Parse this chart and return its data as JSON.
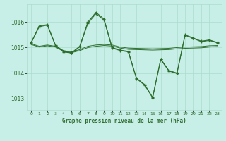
{
  "background_color": "#c8eee8",
  "grid_color": "#aaddcc",
  "line_color": "#2d6e2d",
  "title": "Graphe pression niveau de la mer (hPa)",
  "xlim": [
    -0.5,
    23.5
  ],
  "ylim": [
    1012.55,
    1016.7
  ],
  "yticks": [
    1013,
    1014,
    1015,
    1016
  ],
  "xticks": [
    0,
    1,
    2,
    3,
    4,
    5,
    6,
    7,
    8,
    9,
    10,
    11,
    12,
    13,
    14,
    15,
    16,
    17,
    18,
    19,
    20,
    21,
    22,
    23
  ],
  "s1": [
    1015.2,
    1015.85,
    1015.9,
    1015.1,
    1014.85,
    1014.8,
    1015.05,
    1016.0,
    1016.38,
    1016.12,
    1015.0,
    1014.9,
    1014.85,
    1013.8,
    1013.55,
    1013.05,
    1014.55,
    1014.1,
    1014.0,
    1015.5,
    1015.38,
    1015.25,
    1015.3,
    1015.2
  ],
  "s2": [
    1015.18,
    1015.82,
    1015.88,
    1015.08,
    1014.83,
    1014.78,
    1015.03,
    1015.95,
    1016.33,
    1016.08,
    1014.98,
    1014.88,
    1014.83,
    1013.78,
    1013.53,
    1013.03,
    1014.53,
    1014.08,
    1013.98,
    1015.48,
    1015.36,
    1015.23,
    1015.28,
    1015.18
  ],
  "s3": [
    1015.15,
    1015.05,
    1015.1,
    1015.05,
    1014.88,
    1014.83,
    1014.92,
    1015.05,
    1015.1,
    1015.12,
    1015.1,
    1015.02,
    1014.98,
    1014.97,
    1014.96,
    1014.95,
    1014.96,
    1014.97,
    1015.0,
    1015.02,
    1015.03,
    1015.04,
    1015.07,
    1015.08
  ],
  "s4": [
    1015.12,
    1015.02,
    1015.07,
    1015.02,
    1014.85,
    1014.8,
    1014.88,
    1015.0,
    1015.05,
    1015.08,
    1015.06,
    1014.98,
    1014.93,
    1014.92,
    1014.91,
    1014.9,
    1014.91,
    1014.92,
    1014.95,
    1014.97,
    1014.98,
    1014.99,
    1015.02,
    1015.04
  ]
}
